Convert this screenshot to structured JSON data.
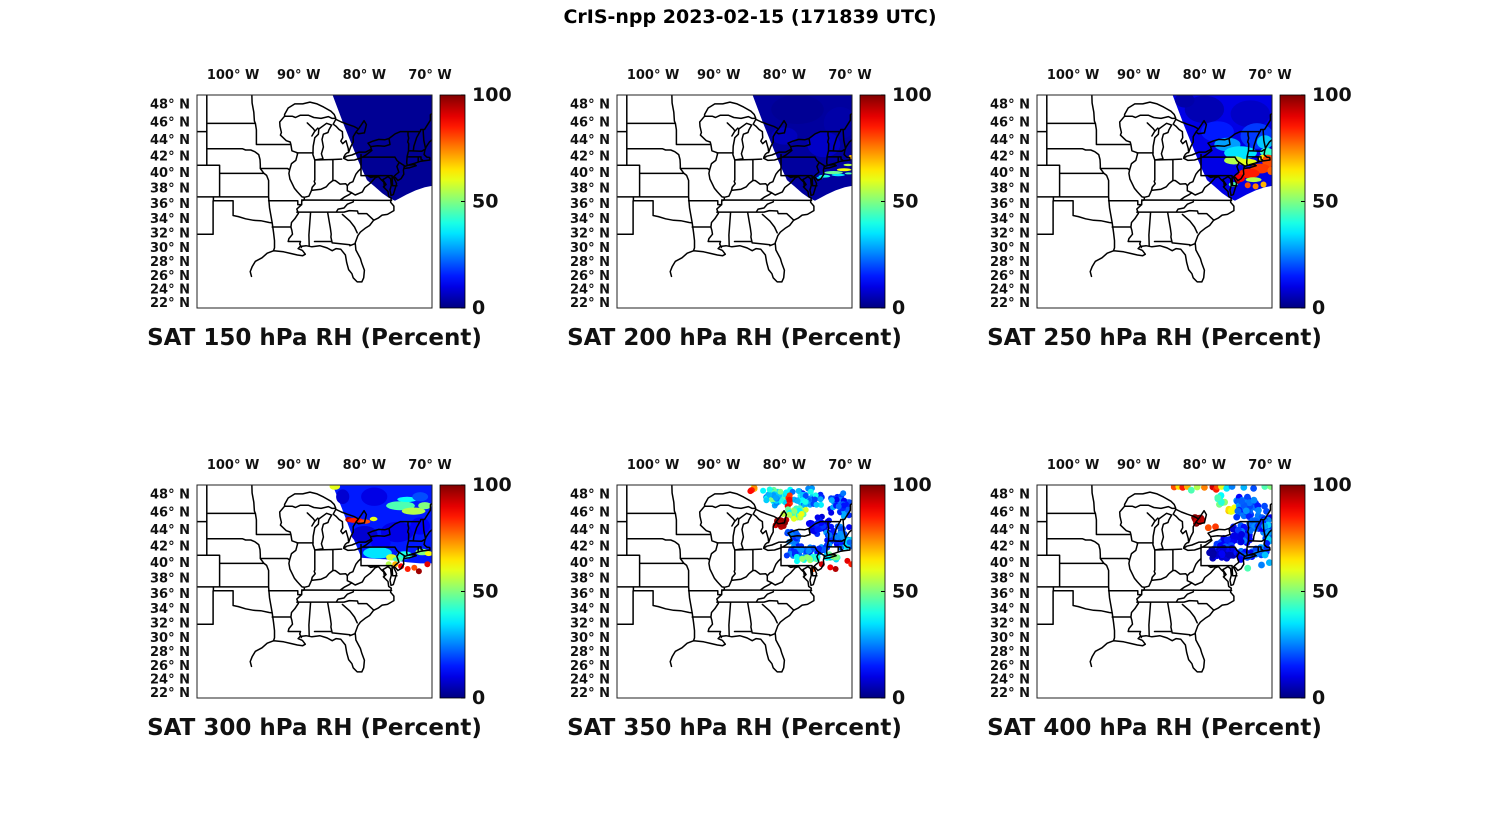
{
  "figure_title": "CrIS-npp 2023-02-15 (171839 UTC)",
  "chart_data": {
    "type": "scatter",
    "subtype": "satellite-swath-map",
    "projection": "mercator",
    "lon_range": [
      -105.5,
      -69.7
    ],
    "lat_range": [
      21.3,
      49.06
    ],
    "x_tick_labels": [
      "100° W",
      "90° W",
      "80° W",
      "70° W"
    ],
    "x_tick_lons": [
      -100,
      -90,
      -80,
      -70
    ],
    "y_tick_labels": [
      "48° N",
      "46° N",
      "44° N",
      "42° N",
      "40° N",
      "38° N",
      "36° N",
      "34° N",
      "32° N",
      "30° N",
      "28° N",
      "26° N",
      "24° N",
      "22° N"
    ],
    "y_tick_lats": [
      48,
      46,
      44,
      42,
      40,
      38,
      36,
      34,
      32,
      30,
      28,
      26,
      24,
      22
    ],
    "colorbar": {
      "min": 0,
      "max": 100,
      "tick_labels": [
        "100",
        "50",
        "0"
      ],
      "tick_values": [
        100,
        50,
        0
      ],
      "colormap": "jet"
    },
    "swath_outlines": {
      "A": [
        [
          -84.95,
          49.25
        ],
        [
          -69.55,
          49.25
        ],
        [
          -69.55,
          38.45
        ],
        [
          -70.8,
          38.25
        ],
        [
          -72.2,
          37.85
        ],
        [
          -73.6,
          37.3
        ],
        [
          -74.8,
          36.75
        ],
        [
          -75.35,
          36.5
        ],
        [
          -76.3,
          36.9
        ],
        [
          -77.3,
          37.5
        ],
        [
          -78.4,
          38.3
        ],
        [
          -79.6,
          39.15
        ],
        [
          -80.7,
          41.1
        ],
        [
          -81.95,
          43.55
        ],
        [
          -83.2,
          45.9
        ],
        [
          -84.95,
          49.25
        ]
      ],
      "B": [
        [
          -84.95,
          49.25
        ],
        [
          -69.55,
          49.25
        ],
        [
          -69.55,
          40.0
        ],
        [
          -71.5,
          40.0
        ],
        [
          -73.5,
          40.15
        ],
        [
          -75.3,
          40.35
        ],
        [
          -76.8,
          40.5
        ],
        [
          -78.2,
          40.55
        ],
        [
          -80.45,
          40.7
        ],
        [
          -81.95,
          43.55
        ],
        [
          -83.4,
          46.45
        ],
        [
          -84.95,
          49.25
        ]
      ]
    },
    "panels": [
      {
        "title": "SAT 150 hPa RH (Percent)",
        "level_hPa": 150,
        "render": "fill",
        "outline": "A",
        "base_value": 2,
        "dot_r": 3.0,
        "spots": [],
        "clusters": [],
        "points": []
      },
      {
        "title": "SAT 200 hPa RH (Percent)",
        "level_hPa": 200,
        "render": "fill",
        "outline": "A",
        "base_value": 3,
        "dot_r": 3.0,
        "spots": [
          [
            -78,
            47.5,
            4,
            1.6,
            2
          ],
          [
            -71.5,
            46,
            2.5,
            1.8,
            4
          ],
          [
            -80,
            44.5,
            2,
            1,
            6
          ],
          [
            -74,
            43.5,
            2.5,
            1.5,
            7
          ],
          [
            -74.6,
            39.45,
            0.5,
            0.15,
            30
          ],
          [
            -73.9,
            39.65,
            0.9,
            0.18,
            40
          ],
          [
            -72.5,
            40.1,
            1.4,
            0.2,
            48
          ],
          [
            -71.8,
            39.8,
            1.0,
            0.15,
            35
          ],
          [
            -70.9,
            40.45,
            1.1,
            0.18,
            62
          ],
          [
            -70.3,
            41.05,
            0.7,
            0.15,
            55
          ],
          [
            -70.2,
            40.0,
            0.6,
            0.12,
            45
          ],
          [
            -69.9,
            42.0,
            0.3,
            0.25,
            70
          ]
        ],
        "clusters": [],
        "points": []
      },
      {
        "title": "SAT 250 hPa RH (Percent)",
        "level_hPa": 250,
        "render": "fill",
        "outline": "A",
        "base_value": 10,
        "dot_r": 3.0,
        "spots": [
          [
            -80,
            47.5,
            3,
            1.5,
            5
          ],
          [
            -73,
            47,
            3,
            1.5,
            7
          ],
          [
            -83,
            48.5,
            1.5,
            0.8,
            4
          ],
          [
            -78,
            45,
            2.5,
            1.2,
            15
          ],
          [
            -72,
            44.5,
            2.5,
            1.5,
            18
          ],
          [
            -76.5,
            43.5,
            2,
            0.8,
            28
          ],
          [
            -70.8,
            43.8,
            1.2,
            0.8,
            32
          ],
          [
            -74.5,
            42.5,
            2.5,
            0.8,
            35
          ],
          [
            -70.5,
            42.6,
            1,
            0.5,
            42
          ],
          [
            -75.5,
            41.6,
            1.5,
            0.5,
            55
          ],
          [
            -73.5,
            41.4,
            1.5,
            0.4,
            60
          ],
          [
            -71.0,
            41.9,
            0.8,
            0.4,
            65
          ],
          [
            -70.3,
            41.5,
            0.9,
            0.8,
            80
          ],
          [
            -71.5,
            40.6,
            1.5,
            0.6,
            82
          ],
          [
            -73.2,
            40.0,
            1.6,
            0.6,
            85
          ],
          [
            -74.6,
            39.4,
            0.8,
            0.5,
            88
          ],
          [
            -69.9,
            40.3,
            0.5,
            0.5,
            78
          ],
          [
            -74.9,
            38.95,
            0.35,
            0.25,
            95
          ],
          [
            -75.6,
            38.6,
            0.7,
            0.3,
            45
          ],
          [
            -72.5,
            39.2,
            1.2,
            0.3,
            55
          ]
        ],
        "clusters": [],
        "points": [
          [
            -73.4,
            38.5,
            80
          ],
          [
            -72.2,
            38.35,
            75
          ],
          [
            -71.0,
            38.6,
            70
          ]
        ]
      },
      {
        "title": "SAT 300 hPa RH (Percent)",
        "level_hPa": 300,
        "render": "fill",
        "outline": "B",
        "base_value": 15,
        "dot_r": 3.0,
        "spots": [
          [
            -84.5,
            48.9,
            0.8,
            0.35,
            60
          ],
          [
            -83.3,
            47.8,
            1.0,
            0.8,
            8
          ],
          [
            -78.5,
            47.8,
            2.0,
            1.0,
            10
          ],
          [
            -74.5,
            46.8,
            2.2,
            0.5,
            45
          ],
          [
            -72.5,
            46.2,
            1.8,
            0.4,
            55
          ],
          [
            -70.8,
            46.8,
            1.0,
            0.4,
            50
          ],
          [
            -73.5,
            47.5,
            1.5,
            0.3,
            38
          ],
          [
            -71.5,
            47.8,
            1.2,
            0.5,
            20
          ],
          [
            -82.4,
            45.25,
            0.5,
            0.3,
            97
          ],
          [
            -81.4,
            45.15,
            1.2,
            0.3,
            85
          ],
          [
            -79.9,
            45.0,
            0.8,
            0.25,
            80
          ],
          [
            -78.6,
            45.3,
            0.6,
            0.25,
            60
          ],
          [
            -80,
            43.5,
            2,
            1,
            8
          ],
          [
            -75,
            43.8,
            2.5,
            1.2,
            10
          ],
          [
            -71.5,
            44.5,
            1.5,
            1,
            12
          ],
          [
            -77.5,
            42.5,
            1.5,
            0.8,
            12
          ],
          [
            -78,
            41.3,
            2.2,
            0.7,
            35
          ],
          [
            -75.9,
            40.75,
            0.8,
            0.4,
            58
          ],
          [
            -73.9,
            41.0,
            1.2,
            0.5,
            40
          ],
          [
            -71.2,
            41.4,
            1.0,
            0.4,
            50
          ],
          [
            -70.2,
            41.2,
            0.6,
            0.3,
            62
          ],
          [
            -74.9,
            40.5,
            0.8,
            0.3,
            45
          ]
        ],
        "clusters": [],
        "points": [
          [
            -74.4,
            39.65,
            88
          ],
          [
            -73.4,
            39.3,
            85
          ],
          [
            -72.4,
            39.45,
            80
          ],
          [
            -71.7,
            39.0,
            97
          ],
          [
            -70.4,
            39.9,
            90
          ],
          [
            -75.3,
            39.9,
            70
          ],
          [
            -76.3,
            39.9,
            55
          ]
        ]
      },
      {
        "title": "SAT 350 hPa RH (Percent)",
        "level_hPa": 350,
        "render": "dots",
        "outline": "",
        "base_value": 0,
        "dot_r": 3.0,
        "spots": [],
        "clusters": [
          [
            -84.5,
            48.8,
            0.6,
            0.35,
            6,
            55,
            80
          ],
          [
            -85.0,
            48.5,
            0.3,
            0.3,
            3,
            85,
            95
          ],
          [
            -81.5,
            47.8,
            2.2,
            1.1,
            48,
            25,
            50
          ],
          [
            -76.5,
            47.7,
            2.8,
            1.2,
            55,
            15,
            40
          ],
          [
            -71.5,
            47.0,
            1.8,
            1.5,
            40,
            10,
            30
          ],
          [
            -79.3,
            47.5,
            0.3,
            0.9,
            7,
            80,
            95
          ],
          [
            -78.5,
            45.9,
            1.8,
            0.8,
            30,
            35,
            65
          ],
          [
            -80.6,
            44.8,
            1.1,
            0.55,
            18,
            92,
            100
          ],
          [
            -78.5,
            43.2,
            1.2,
            1.0,
            15,
            15,
            35
          ],
          [
            -75.0,
            44.6,
            2.0,
            1.2,
            40,
            8,
            22
          ],
          [
            -72.0,
            43.2,
            2.0,
            1.4,
            45,
            10,
            28
          ],
          [
            -70.4,
            42.4,
            1.0,
            1.0,
            15,
            20,
            40
          ],
          [
            -77.5,
            41.4,
            2.2,
            0.8,
            35,
            10,
            28
          ],
          [
            -74.5,
            41.6,
            1.5,
            0.7,
            20,
            12,
            30
          ],
          [
            -76.5,
            40.55,
            2.0,
            0.35,
            18,
            35,
            60
          ],
          [
            -73.0,
            40.8,
            1.5,
            0.5,
            18,
            30,
            55
          ]
        ],
        "points": [
          [
            -74.3,
            39.9,
            92
          ],
          [
            -73.0,
            39.5,
            88
          ],
          [
            -72.2,
            39.3,
            95
          ],
          [
            -70.4,
            40.3,
            90
          ],
          [
            -69.8,
            39.9,
            85
          ],
          [
            -75.6,
            39.3,
            80
          ]
        ]
      },
      {
        "title": "SAT 400 hPa RH (Percent)",
        "level_hPa": 400,
        "render": "dots",
        "outline": "",
        "base_value": 0,
        "dot_r": 3.4,
        "spots": [],
        "clusters": [
          [
            -80.9,
            45.2,
            0.9,
            0.5,
            14,
            93,
            100
          ],
          [
            -77.5,
            47.3,
            1.0,
            0.8,
            10,
            35,
            55
          ],
          [
            -76.0,
            46.3,
            0.8,
            0.5,
            6,
            55,
            70
          ],
          [
            -73.5,
            46.5,
            2.2,
            1.5,
            35,
            12,
            30
          ],
          [
            -70.8,
            45.0,
            1.2,
            2.0,
            25,
            10,
            28
          ],
          [
            -74.5,
            43.5,
            2.0,
            1.3,
            35,
            8,
            25
          ],
          [
            -77.0,
            42.3,
            1.5,
            0.8,
            20,
            10,
            22
          ],
          [
            -77.2,
            41.2,
            2.2,
            0.8,
            45,
            3,
            12
          ],
          [
            -74.0,
            41.0,
            1.5,
            0.6,
            20,
            8,
            25
          ],
          [
            -71.5,
            41.7,
            1.3,
            0.8,
            18,
            15,
            35
          ],
          [
            -70.3,
            43.5,
            0.5,
            1.5,
            12,
            15,
            35
          ],
          [
            -72.0,
            44.8,
            1.5,
            1.0,
            20,
            15,
            30
          ]
        ],
        "points": [
          [
            -84.6,
            48.85,
            80
          ],
          [
            -83.9,
            48.9,
            65
          ],
          [
            -83.3,
            48.8,
            85
          ],
          [
            -82.6,
            48.9,
            70
          ],
          [
            -82.0,
            48.5,
            45
          ],
          [
            -81.1,
            48.85,
            55
          ],
          [
            -80.0,
            48.8,
            75
          ],
          [
            -78.7,
            48.85,
            92
          ],
          [
            -78.2,
            48.6,
            85
          ],
          [
            -78.0,
            48.9,
            80
          ],
          [
            -77.4,
            48.9,
            60
          ],
          [
            -76.6,
            48.7,
            35
          ],
          [
            -75.8,
            48.9,
            25
          ],
          [
            -74.0,
            48.8,
            30
          ],
          [
            -72.5,
            48.7,
            20
          ],
          [
            -70.8,
            48.9,
            45
          ],
          [
            -69.9,
            48.9,
            50
          ],
          [
            -79.4,
            44.3,
            80
          ],
          [
            -78.3,
            44.4,
            82
          ],
          [
            -73.4,
            39.4,
            45
          ],
          [
            -71.3,
            39.8,
            25
          ],
          [
            -70.1,
            40.1,
            30
          ]
        ]
      }
    ]
  }
}
